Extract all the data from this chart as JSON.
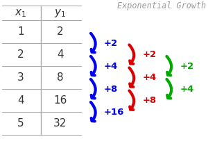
{
  "title": "Exponential Growth",
  "title_color": "#999999",
  "x_vals": [
    1,
    2,
    3,
    4,
    5
  ],
  "y_vals": [
    2,
    4,
    8,
    16,
    32
  ],
  "blue_labels": [
    "+2",
    "+4",
    "+8",
    "+16"
  ],
  "red_labels": [
    "+2",
    "+4",
    "+8"
  ],
  "green_labels": [
    "+2",
    "+4"
  ],
  "blue_color": "#0000ee",
  "red_color": "#dd0000",
  "green_color": "#00aa00",
  "table_line_color": "#aaaaaa",
  "text_color": "#333333",
  "bg_color": "#ffffff"
}
